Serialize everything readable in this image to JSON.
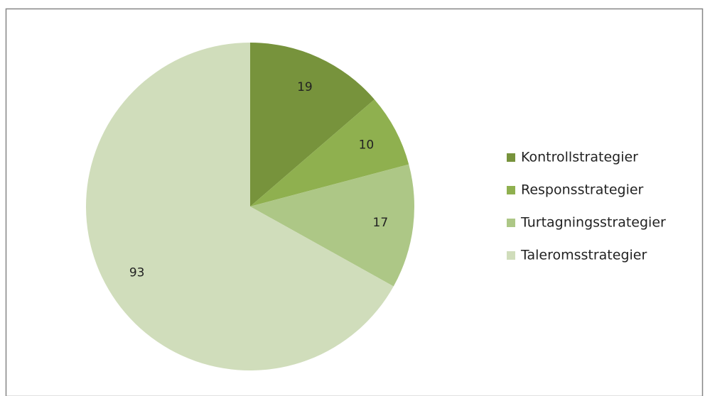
{
  "chart_data": {
    "type": "pie",
    "categories": [
      "Kontrollstrategier",
      "Responsstrategier",
      "Turtagningsstrategier",
      "Taleromsstrategier"
    ],
    "values": [
      19,
      10,
      17,
      93
    ],
    "colors": [
      "#77933c",
      "#8fb04f",
      "#adc786",
      "#d0ddbb"
    ],
    "legend": "right"
  }
}
